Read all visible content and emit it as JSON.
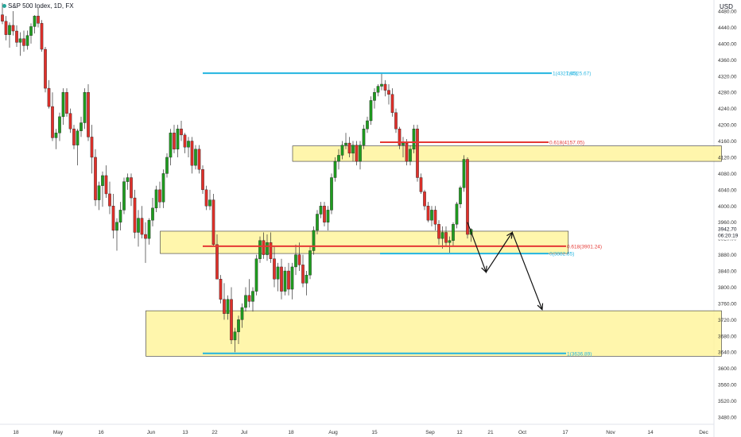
{
  "header": {
    "title": "S&P 500 Index, 1D, FX",
    "currency": "USD"
  },
  "colors": {
    "up": "#1f9d1f",
    "down": "#e0302a",
    "zone_fill": "#fff59d",
    "zone_stroke": "#333333",
    "cyan": "#22b4e0",
    "red": "#e53935",
    "axis_text": "#333333"
  },
  "chart_data": {
    "type": "candlestick",
    "yaxis": {
      "ticks": [
        "4480.00",
        "4440.00",
        "4400.00",
        "4360.00",
        "4320.00",
        "4280.00",
        "4240.00",
        "4200.00",
        "4160.00",
        "4120.00",
        "4080.00",
        "4040.00",
        "4000.00",
        "3960.00",
        "3920.00",
        "3880.00",
        "3840.00",
        "3800.00",
        "3760.00",
        "3720.00",
        "3680.00",
        "3640.00",
        "3600.00",
        "3560.00",
        "3520.00",
        "3480.00"
      ],
      "ylim": [
        3470,
        4490
      ]
    },
    "xaxis": {
      "ticks": [
        "18",
        "May",
        "16",
        "Jun",
        "13",
        "22",
        "Jul",
        "18",
        "Aug",
        "15",
        "Sep",
        "12",
        "21",
        "Oct",
        "17",
        "Nov",
        "14",
        "Dec"
      ]
    },
    "price_label": {
      "value": "3942.70",
      "countdown": "06:20:19"
    },
    "zones": [
      {
        "name": "upper-resistance-zone",
        "low": 4110,
        "high": 4148,
        "x_from_index": 82,
        "x_to_date": "2022-11-21"
      },
      {
        "name": "middle-support-zone",
        "low": 3883,
        "high": 3938,
        "x_from_index": 45,
        "x_to_date": "2022-10-11"
      },
      {
        "name": "lower-support-zone",
        "low": 3630,
        "high": 3742,
        "x_from_index": 41,
        "x_to_date": "2022-11-21"
      }
    ],
    "fib_levels": [
      {
        "label": "1(4327.65)",
        "partial_label": "1(4325.67)",
        "value": 4327,
        "color": "cyan"
      },
      {
        "label": "0.618(4157.05)",
        "value": 4157,
        "color": "red"
      },
      {
        "label": "0.618(3901.24)",
        "value": 3901,
        "color": "red"
      },
      {
        "label": "0(3882.85)",
        "value": 3883,
        "color": "cyan"
      },
      {
        "label": "1(3636.89)",
        "value": 3637,
        "color": "cyan"
      }
    ],
    "projection_path": [
      {
        "date": "2022-09-14",
        "value": 3960
      },
      {
        "date": "2022-09-19",
        "value": 3837
      },
      {
        "date": "2022-09-26",
        "value": 3935
      },
      {
        "date": "2022-10-04",
        "value": 3745
      }
    ],
    "candles": [
      [
        4471,
        4500,
        4448,
        4455
      ],
      [
        4455,
        4468,
        4408,
        4422
      ],
      [
        4422,
        4452,
        4390,
        4445
      ],
      [
        4445,
        4480,
        4420,
        4431
      ],
      [
        4431,
        4445,
        4392,
        4403
      ],
      [
        4403,
        4428,
        4370,
        4412
      ],
      [
        4412,
        4432,
        4380,
        4395
      ],
      [
        4395,
        4432,
        4385,
        4420
      ],
      [
        4420,
        4450,
        4400,
        4442
      ],
      [
        4442,
        4470,
        4425,
        4468
      ],
      [
        4468,
        4490,
        4440,
        4450
      ],
      [
        4450,
        4458,
        4380,
        4386
      ],
      [
        4386,
        4392,
        4280,
        4290
      ],
      [
        4290,
        4310,
        4240,
        4245
      ],
      [
        4245,
        4280,
        4160,
        4168
      ],
      [
        4168,
        4190,
        4140,
        4180
      ],
      [
        4180,
        4230,
        4160,
        4220
      ],
      [
        4220,
        4290,
        4200,
        4280
      ],
      [
        4280,
        4290,
        4220,
        4228
      ],
      [
        4228,
        4240,
        4180,
        4190
      ],
      [
        4190,
        4200,
        4140,
        4150
      ],
      [
        4150,
        4190,
        4100,
        4185
      ],
      [
        4185,
        4220,
        4170,
        4205
      ],
      [
        4205,
        4290,
        4190,
        4280
      ],
      [
        4280,
        4300,
        4160,
        4170
      ],
      [
        4170,
        4200,
        4080,
        4120
      ],
      [
        4120,
        4140,
        4000,
        4015
      ],
      [
        4015,
        4060,
        3990,
        4050
      ],
      [
        4050,
        4085,
        3998,
        4075
      ],
      [
        4075,
        4100,
        4020,
        4030
      ],
      [
        4030,
        4060,
        3980,
        4000
      ],
      [
        4000,
        4030,
        3920,
        3940
      ],
      [
        3940,
        3970,
        3890,
        3960
      ],
      [
        3960,
        4010,
        3940,
        3990
      ],
      [
        3990,
        4070,
        3980,
        4060
      ],
      [
        4060,
        4080,
        4040,
        4070
      ],
      [
        4070,
        4080,
        4000,
        4020
      ],
      [
        4020,
        4040,
        3920,
        3935
      ],
      [
        3935,
        3990,
        3900,
        3970
      ],
      [
        3970,
        4000,
        3920,
        3930
      ],
      [
        3930,
        3960,
        3860,
        3920
      ],
      [
        3920,
        3970,
        3905,
        3965
      ],
      [
        3965,
        4020,
        3950,
        3995
      ],
      [
        3995,
        4050,
        3985,
        4040
      ],
      [
        4040,
        4060,
        3995,
        4010
      ],
      [
        4010,
        4090,
        3995,
        4080
      ],
      [
        4080,
        4130,
        4070,
        4120
      ],
      [
        4120,
        4190,
        4100,
        4180
      ],
      [
        4180,
        4200,
        4130,
        4140
      ],
      [
        4140,
        4200,
        4120,
        4190
      ],
      [
        4190,
        4210,
        4160,
        4175
      ],
      [
        4175,
        4180,
        4130,
        4145
      ],
      [
        4145,
        4170,
        4120,
        4160
      ],
      [
        4160,
        4170,
        4080,
        4100
      ],
      [
        4100,
        4150,
        4090,
        4140
      ],
      [
        4140,
        4150,
        4080,
        4090
      ],
      [
        4090,
        4100,
        4030,
        4040
      ],
      [
        4040,
        4050,
        3990,
        4000
      ],
      [
        4000,
        4040,
        3990,
        4015
      ],
      [
        4015,
        4030,
        3900,
        3905
      ],
      [
        3905,
        3930,
        3820,
        3820
      ],
      [
        3820,
        3830,
        3760,
        3770
      ],
      [
        3770,
        3810,
        3720,
        3735
      ],
      [
        3735,
        3780,
        3720,
        3770
      ],
      [
        3770,
        3800,
        3660,
        3670
      ],
      [
        3670,
        3700,
        3640,
        3690
      ],
      [
        3690,
        3730,
        3660,
        3720
      ],
      [
        3720,
        3760,
        3700,
        3750
      ],
      [
        3750,
        3800,
        3740,
        3780
      ],
      [
        3780,
        3820,
        3750,
        3765
      ],
      [
        3765,
        3800,
        3740,
        3790
      ],
      [
        3790,
        3880,
        3780,
        3870
      ],
      [
        3870,
        3925,
        3860,
        3915
      ],
      [
        3915,
        3935,
        3870,
        3880
      ],
      [
        3880,
        3930,
        3865,
        3910
      ],
      [
        3910,
        3935,
        3860,
        3870
      ],
      [
        3870,
        3900,
        3800,
        3820
      ],
      [
        3820,
        3860,
        3790,
        3850
      ],
      [
        3850,
        3870,
        3770,
        3790
      ],
      [
        3790,
        3850,
        3780,
        3840
      ],
      [
        3840,
        3860,
        3780,
        3795
      ],
      [
        3795,
        3860,
        3770,
        3850
      ],
      [
        3850,
        3905,
        3830,
        3880
      ],
      [
        3880,
        3910,
        3840,
        3855
      ],
      [
        3855,
        3880,
        3800,
        3810
      ],
      [
        3810,
        3840,
        3780,
        3830
      ],
      [
        3830,
        3900,
        3820,
        3890
      ],
      [
        3890,
        3950,
        3880,
        3940
      ],
      [
        3940,
        3990,
        3930,
        3980
      ],
      [
        3980,
        4010,
        3970,
        4000
      ],
      [
        4000,
        4010,
        3950,
        3960
      ],
      [
        3960,
        4000,
        3940,
        3990
      ],
      [
        3990,
        4080,
        3980,
        4070
      ],
      [
        4070,
        4120,
        4060,
        4110
      ],
      [
        4110,
        4140,
        4090,
        4125
      ],
      [
        4125,
        4160,
        4115,
        4150
      ],
      [
        4150,
        4180,
        4140,
        4155
      ],
      [
        4155,
        4170,
        4120,
        4130
      ],
      [
        4130,
        4160,
        4110,
        4150
      ],
      [
        4150,
        4160,
        4100,
        4110
      ],
      [
        4110,
        4160,
        4090,
        4150
      ],
      [
        4150,
        4200,
        4140,
        4190
      ],
      [
        4190,
        4220,
        4180,
        4210
      ],
      [
        4210,
        4270,
        4200,
        4260
      ],
      [
        4260,
        4290,
        4240,
        4280
      ],
      [
        4280,
        4300,
        4270,
        4295
      ],
      [
        4295,
        4327,
        4285,
        4300
      ],
      [
        4300,
        4310,
        4270,
        4285
      ],
      [
        4285,
        4300,
        4250,
        4275
      ],
      [
        4275,
        4290,
        4220,
        4230
      ],
      [
        4230,
        4240,
        4180,
        4190
      ],
      [
        4190,
        4195,
        4140,
        4150
      ],
      [
        4150,
        4170,
        4120,
        4155
      ],
      [
        4155,
        4165,
        4100,
        4110
      ],
      [
        4110,
        4150,
        4100,
        4140
      ],
      [
        4140,
        4200,
        4130,
        4190
      ],
      [
        4190,
        4200,
        4060,
        4070
      ],
      [
        4070,
        4080,
        4030,
        4035
      ],
      [
        4035,
        4040,
        3990,
        4000
      ],
      [
        4000,
        4010,
        3960,
        3965
      ],
      [
        3965,
        4000,
        3950,
        3990
      ],
      [
        3990,
        4000,
        3940,
        3955
      ],
      [
        3955,
        3965,
        3905,
        3920
      ],
      [
        3920,
        3950,
        3895,
        3935
      ],
      [
        3935,
        3950,
        3900,
        3910
      ],
      [
        3910,
        3925,
        3885,
        3915
      ],
      [
        3915,
        3960,
        3900,
        3955
      ],
      [
        3955,
        4010,
        3945,
        4005
      ],
      [
        4005,
        4050,
        3995,
        4045
      ],
      [
        4045,
        4125,
        4035,
        4115
      ],
      [
        4115,
        4120,
        3920,
        3930
      ],
      [
        3930,
        3945,
        3912,
        3942.7
      ]
    ]
  }
}
